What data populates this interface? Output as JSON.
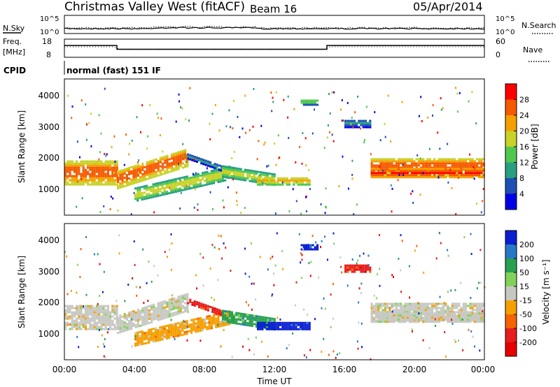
{
  "header": {
    "title": "Christmas Valley West (fitACF)",
    "beam": "Beam 16",
    "date": "05/Apr/2014"
  },
  "chart_data": [
    {
      "type": "line",
      "panel": "noise",
      "left_label": "N.Sky",
      "right_label": "N.Search",
      "left_ticks": [
        "10^5",
        "10^0"
      ],
      "right_ticks": [
        "10^5",
        "10^0"
      ],
      "right_legend_style": "dotted"
    },
    {
      "type": "line",
      "panel": "frequency",
      "left_label_lines": [
        "Freq.",
        "[MHz]"
      ],
      "left_ticks": [
        "18",
        "8"
      ],
      "right_label": "Nave",
      "right_ticks": [
        "60",
        "0"
      ],
      "freq_steps": [
        {
          "x": [
            0,
            3
          ],
          "y": 14.5
        },
        {
          "x": [
            3,
            15
          ],
          "y": 12.4
        },
        {
          "x": [
            15,
            24
          ],
          "y": 14.5
        }
      ]
    },
    {
      "type": "text",
      "panel": "cpid",
      "label": "CPID",
      "value": "normal (fast) 151 IF"
    },
    {
      "type": "heatmap",
      "panel": "power",
      "ylabel": "Slant Range [km]",
      "yticks": [
        "4000",
        "3000",
        "2000",
        "1000"
      ],
      "ylim": [
        200,
        4600
      ],
      "xlim": [
        0,
        24
      ],
      "colorbar": {
        "label": "Power [dB]",
        "ticks": [
          "28",
          "24",
          "20",
          "16",
          "12",
          "8",
          "4"
        ],
        "colors": [
          "#ff0000",
          "#f55a00",
          "#f5a000",
          "#c8d228",
          "#50c850",
          "#28a080",
          "#1e50b4",
          "#0000e6"
        ]
      }
    },
    {
      "type": "heatmap",
      "panel": "velocity",
      "ylabel": "Slant Range [km]",
      "yticks": [
        "4000",
        "3000",
        "2000",
        "1000"
      ],
      "ylim": [
        200,
        4600
      ],
      "xlim": [
        0,
        24
      ],
      "xticks": [
        "00:00",
        "04:00",
        "08:00",
        "12:00",
        "16:00",
        "20:00",
        "00:00"
      ],
      "xlabel": "Time UT",
      "colorbar": {
        "label": "Velocity [m s⁻¹]",
        "ticks": [
          "200",
          "100",
          "50",
          "15",
          "-15",
          "-50",
          "-100",
          "-200"
        ],
        "colors": [
          "#0a1ed2",
          "#2878c8",
          "#28a050",
          "#82d25a",
          "#c8c8c3",
          "#f5a000",
          "#f56400",
          "#e61e1e",
          "#e60000"
        ]
      }
    }
  ]
}
